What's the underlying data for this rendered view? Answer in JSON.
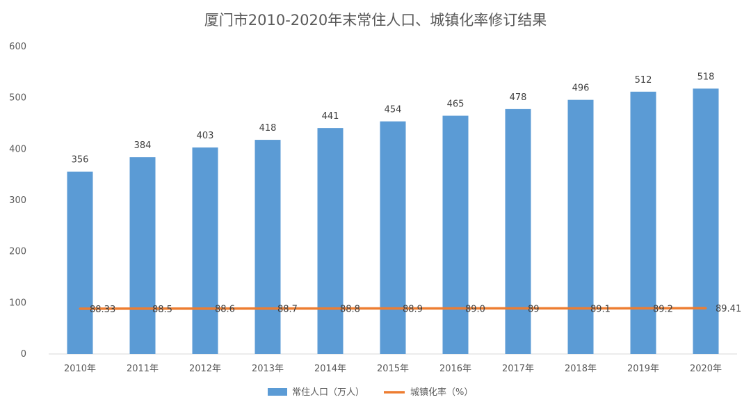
{
  "chart_data": {
    "type": "bar",
    "title": "厦门市2010-2020年末常住人口、城镇化率修订结果",
    "categories": [
      "2010年",
      "2011年",
      "2012年",
      "2013年",
      "2014年",
      "2015年",
      "2016年",
      "2017年",
      "2018年",
      "2019年",
      "2020年"
    ],
    "ylim": [
      0,
      600
    ],
    "yticks": [
      "0",
      "100",
      "200",
      "300",
      "400",
      "500",
      "600"
    ],
    "grid": false,
    "legend_position": "bottom",
    "series": [
      {
        "name": "常住人口（万人）",
        "type": "bar",
        "color": "#5B9BD5",
        "values": [
          356,
          384,
          403,
          418,
          441,
          454,
          465,
          478,
          496,
          512,
          518
        ],
        "labels": [
          "356",
          "384",
          "403",
          "418",
          "441",
          "454",
          "465",
          "478",
          "496",
          "512",
          "518"
        ]
      },
      {
        "name": "城镇化率（%）",
        "type": "line",
        "color": "#ED7D31",
        "values": [
          88.33,
          88.5,
          88.6,
          88.7,
          88.8,
          88.9,
          89.0,
          89,
          89.1,
          89.2,
          89.41
        ],
        "labels": [
          "88.33",
          "88.5",
          "88.6",
          "88.7",
          "88.8",
          "88.9",
          "89.0",
          "89",
          "89.1",
          "89.2",
          "89.41"
        ]
      }
    ]
  }
}
